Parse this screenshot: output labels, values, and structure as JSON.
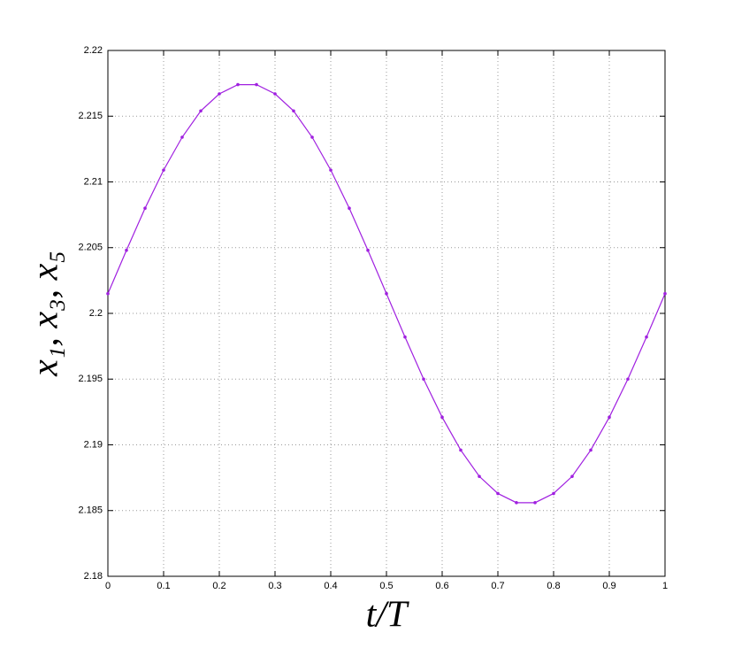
{
  "chart_data": {
    "type": "line",
    "x_label": "t/T",
    "y_label": "x₁, x₃, x₅",
    "x": [
      0,
      0.0333,
      0.0667,
      0.1,
      0.1333,
      0.1667,
      0.2,
      0.2333,
      0.2667,
      0.3,
      0.3333,
      0.3667,
      0.4,
      0.4333,
      0.4667,
      0.5,
      0.5333,
      0.5667,
      0.6,
      0.6333,
      0.6667,
      0.7,
      0.7333,
      0.7667,
      0.8,
      0.8333,
      0.8667,
      0.9,
      0.9333,
      0.9667,
      1
    ],
    "values": [
      2.2015,
      2.2048,
      2.208,
      2.2109,
      2.2134,
      2.2154,
      2.2167,
      2.2174,
      2.2174,
      2.2167,
      2.2154,
      2.2134,
      2.2109,
      2.208,
      2.2048,
      2.2015,
      2.1982,
      2.195,
      2.1921,
      2.1896,
      2.1876,
      2.1863,
      2.1856,
      2.1856,
      2.1863,
      2.1876,
      2.1896,
      2.1921,
      2.195,
      2.1982,
      2.2015
    ],
    "color": "#a020e0",
    "xlim": [
      0,
      1
    ],
    "xticks": [
      0,
      0.1,
      0.2,
      0.3,
      0.4,
      0.5,
      0.6,
      0.7,
      0.8,
      0.9,
      1
    ],
    "ylim": [
      2.18,
      2.22
    ],
    "yticks": [
      2.18,
      2.185,
      2.19,
      2.195,
      2.2,
      2.205,
      2.21,
      2.215,
      2.22
    ],
    "grid": true
  }
}
